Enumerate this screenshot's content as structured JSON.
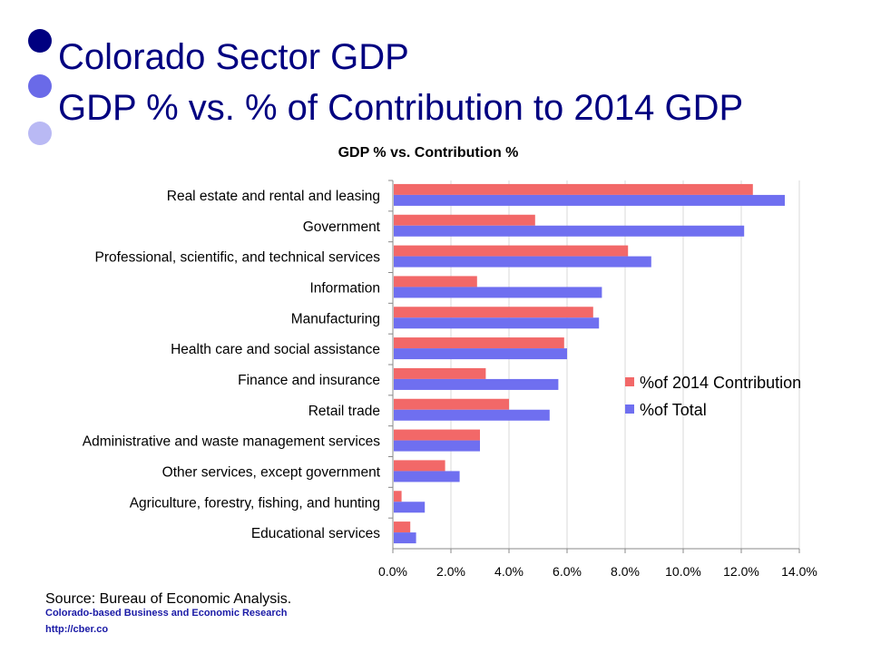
{
  "slide": {
    "title_line1": "Colorado Sector GDP",
    "title_line2": "GDP % vs. % of Contribution to 2014 GDP",
    "bullet_colors": [
      "#000080",
      "#6a6ae8",
      "#b9b9f4"
    ],
    "source": "Source: Bureau of Economic Analysis.",
    "org": "Colorado-based Business and Economic Research",
    "url": "http://cber.co"
  },
  "chart_data": {
    "type": "bar",
    "orientation": "horizontal",
    "title": "GDP % vs. Contribution %",
    "categories": [
      "Real estate and rental and leasing",
      "Government",
      "Professional, scientific, and technical services",
      "Information",
      "Manufacturing",
      "Health care and social assistance",
      "Finance and insurance",
      "Retail trade",
      "Administrative and waste management services",
      "Other services, except government",
      "Agriculture, forestry, fishing, and hunting",
      "Educational services"
    ],
    "series": [
      {
        "name": "%of 2014 Contribution",
        "color": "#f26868",
        "values": [
          12.4,
          4.9,
          8.1,
          2.9,
          6.9,
          5.9,
          3.2,
          4.0,
          3.0,
          1.8,
          0.3,
          0.6
        ]
      },
      {
        "name": "%of Total",
        "color": "#6f6ff0",
        "values": [
          13.5,
          12.1,
          8.9,
          7.2,
          7.1,
          6.0,
          5.7,
          5.4,
          3.0,
          2.3,
          1.1,
          0.8
        ]
      }
    ],
    "xlim": [
      0,
      14
    ],
    "xticks": [
      "0.0%",
      "2.0%",
      "4.0%",
      "6.0%",
      "8.0%",
      "10.0%",
      "12.0%",
      "14.0%"
    ],
    "grid": true,
    "legend": "right"
  }
}
